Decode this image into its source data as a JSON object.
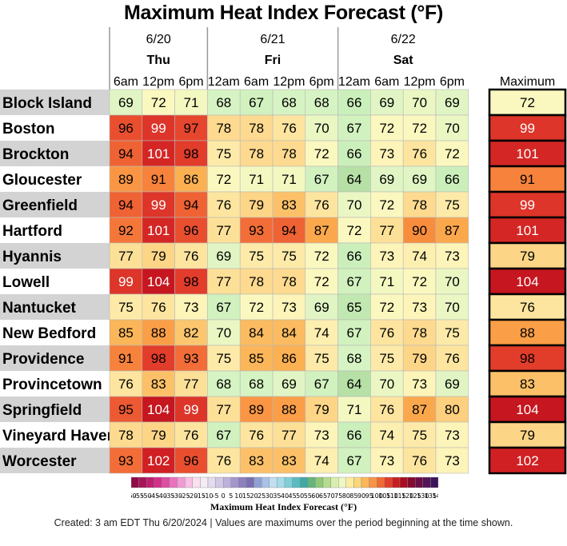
{
  "chart_data": {
    "type": "heatmap",
    "title": "Maximum Heat Index Forecast (°F)",
    "days": [
      {
        "date": "6/20",
        "name": "Thu",
        "hours": [
          "6am",
          "12pm",
          "6pm"
        ]
      },
      {
        "date": "6/21",
        "name": "Fri",
        "hours": [
          "12am",
          "6am",
          "12pm",
          "6pm"
        ]
      },
      {
        "date": "6/22",
        "name": "Sat",
        "hours": [
          "12am",
          "6am",
          "12pm",
          "6pm"
        ]
      }
    ],
    "max_label": "Maximum",
    "rows": [
      {
        "name": "Block Island",
        "values": [
          69,
          72,
          71,
          68,
          67,
          68,
          68,
          66,
          69,
          70,
          69
        ],
        "max": 72
      },
      {
        "name": "Boston",
        "values": [
          96,
          99,
          97,
          78,
          78,
          76,
          70,
          67,
          72,
          72,
          70
        ],
        "max": 99
      },
      {
        "name": "Brockton",
        "values": [
          94,
          101,
          98,
          75,
          78,
          78,
          72,
          66,
          73,
          76,
          72
        ],
        "max": 101
      },
      {
        "name": "Gloucester",
        "values": [
          89,
          91,
          86,
          72,
          71,
          71,
          67,
          64,
          69,
          69,
          66
        ],
        "max": 91
      },
      {
        "name": "Greenfield",
        "values": [
          94,
          99,
          94,
          76,
          79,
          83,
          76,
          70,
          72,
          78,
          75
        ],
        "max": 99
      },
      {
        "name": "Hartford",
        "values": [
          92,
          101,
          96,
          77,
          93,
          94,
          87,
          72,
          77,
          90,
          87
        ],
        "max": 101
      },
      {
        "name": "Hyannis",
        "values": [
          77,
          79,
          76,
          69,
          75,
          75,
          72,
          66,
          73,
          74,
          73
        ],
        "max": 79
      },
      {
        "name": "Lowell",
        "values": [
          99,
          104,
          98,
          77,
          78,
          78,
          72,
          67,
          71,
          72,
          70
        ],
        "max": 104
      },
      {
        "name": "Nantucket",
        "values": [
          75,
          76,
          73,
          67,
          72,
          73,
          69,
          65,
          72,
          73,
          70
        ],
        "max": 76
      },
      {
        "name": "New Bedford",
        "values": [
          85,
          88,
          82,
          70,
          84,
          84,
          74,
          67,
          76,
          78,
          75
        ],
        "max": 88
      },
      {
        "name": "Providence",
        "values": [
          91,
          98,
          93,
          75,
          85,
          86,
          75,
          68,
          75,
          79,
          76
        ],
        "max": 98
      },
      {
        "name": "Provincetown",
        "values": [
          76,
          83,
          77,
          68,
          68,
          69,
          67,
          64,
          70,
          73,
          69
        ],
        "max": 83
      },
      {
        "name": "Springfield",
        "values": [
          95,
          104,
          99,
          77,
          89,
          88,
          79,
          71,
          76,
          87,
          80
        ],
        "max": 104
      },
      {
        "name": "Vineyard Haven",
        "values": [
          78,
          79,
          76,
          67,
          76,
          77,
          73,
          66,
          74,
          75,
          73
        ],
        "max": 79
      },
      {
        "name": "Worcester",
        "values": [
          93,
          102,
          96,
          76,
          83,
          83,
          74,
          67,
          73,
          76,
          73
        ],
        "max": 102
      }
    ],
    "colorbar": {
      "label": "Maximum Heat Index Forecast (°F)",
      "ticks": [
        "-60",
        "-55",
        "-50",
        "-45",
        "-40",
        "-35",
        "-30",
        "-25",
        "-20",
        "-15",
        "-10",
        "-5",
        "0",
        "5",
        "10",
        "15",
        "20",
        "25",
        "30",
        "35",
        "40",
        "45",
        "50",
        "55",
        "60",
        "65",
        "70",
        "75",
        "80",
        "85",
        "90",
        "95",
        "100",
        "105",
        "110",
        "115",
        "120",
        "125",
        "130",
        "135",
        "140"
      ],
      "colors": [
        "#8e0b48",
        "#a6145a",
        "#be1f6f",
        "#d22f88",
        "#de4ca3",
        "#e972be",
        "#f29ad4",
        "#f8c1e5",
        "#fbe0f0",
        "#f4ecf6",
        "#e4dcee",
        "#d2c8e6",
        "#bdb1dc",
        "#a496cc",
        "#8c80bd",
        "#7a6fb0",
        "#8fa1d2",
        "#a8c2e6",
        "#c2def1",
        "#a5dce8",
        "#7fcfd6",
        "#58bdc2",
        "#3fa9a3",
        "#64b47c",
        "#8fc978",
        "#b6dd8e",
        "#d9efb0",
        "#f0f6c4",
        "#fbeca0",
        "#fcd77a",
        "#fbb75a",
        "#f79445",
        "#ef6b34",
        "#e0402a",
        "#c91d21",
        "#a80d22",
        "#850a2f",
        "#6a0f45",
        "#541558",
        "#3b145c"
      ]
    },
    "footer": "Created: 3 am EDT Thu 6/20/2024  |  Values are maximums over the period beginning at the time shown."
  }
}
